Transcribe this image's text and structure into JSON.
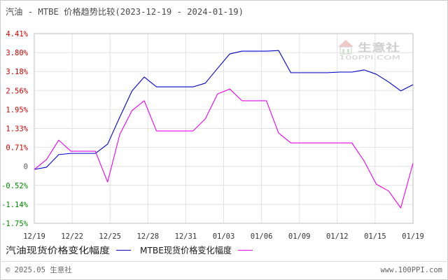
{
  "watermark": {
    "name": "生意社",
    "site": "100PPI.COM"
  },
  "footer": {
    "copyright": "© 2025.05 生意社",
    "site": "www.100PPI.com"
  },
  "colors": {
    "positive_tick": "#cc0000",
    "zero_tick": "#555555",
    "negative_tick": "#008800",
    "grid": "#e2e2e2",
    "frame": "#bdbdbd"
  },
  "chart_data": {
    "type": "line",
    "title": "汽油 - MTBE 价格趋势比较(2023-12-19 - 2024-01-19)",
    "xlim": [
      "2023-12-19",
      "2024-01-19"
    ],
    "ylim": [
      -1.75,
      4.41
    ],
    "grid": true,
    "legend_position": "bottom",
    "x_ticks": [
      "12/19",
      "12/22",
      "12/25",
      "12/28",
      "12/31",
      "01/03",
      "01/06",
      "01/09",
      "01/12",
      "01/15",
      "01/19"
    ],
    "y_ticks": [
      "4.41%",
      "3.80%",
      "3.18%",
      "2.56%",
      "1.95%",
      "1.33%",
      "0.71%",
      "0",
      "-0.52%",
      "-1.14%",
      "-1.75%"
    ],
    "x": [
      "2023-12-19",
      "2023-12-20",
      "2023-12-21",
      "2023-12-22",
      "2023-12-23",
      "2023-12-24",
      "2023-12-25",
      "2023-12-26",
      "2023-12-27",
      "2023-12-28",
      "2023-12-29",
      "2023-12-30",
      "2023-12-31",
      "2024-01-01",
      "2024-01-02",
      "2024-01-03",
      "2024-01-04",
      "2024-01-05",
      "2024-01-06",
      "2024-01-07",
      "2024-01-08",
      "2024-01-09",
      "2024-01-10",
      "2024-01-11",
      "2024-01-12",
      "2024-01-13",
      "2024-01-14",
      "2024-01-15",
      "2024-01-16",
      "2024-01-17",
      "2024-01-18",
      "2024-01-19"
    ],
    "series": [
      {
        "name": "汽油现货价格变化幅度",
        "color": "#0000cc",
        "values": [
          0.0,
          0.07,
          0.48,
          0.52,
          0.52,
          0.52,
          0.82,
          1.7,
          2.55,
          3.0,
          2.68,
          2.68,
          2.68,
          2.68,
          2.8,
          3.28,
          3.75,
          3.84,
          3.84,
          3.84,
          3.86,
          3.14,
          3.14,
          3.14,
          3.14,
          3.16,
          3.16,
          3.23,
          3.09,
          2.84,
          2.55,
          2.75
        ]
      },
      {
        "name": "MTBE现货价格变化幅度",
        "color": "#ee00ee",
        "values": [
          0.0,
          0.32,
          0.95,
          0.59,
          0.59,
          0.59,
          -0.41,
          1.14,
          1.91,
          2.23,
          1.25,
          1.25,
          1.25,
          1.25,
          1.64,
          2.45,
          2.61,
          2.23,
          2.23,
          2.23,
          1.18,
          0.86,
          0.86,
          0.86,
          0.86,
          0.86,
          0.86,
          0.27,
          -0.48,
          -0.7,
          -1.25,
          0.2
        ]
      }
    ]
  }
}
